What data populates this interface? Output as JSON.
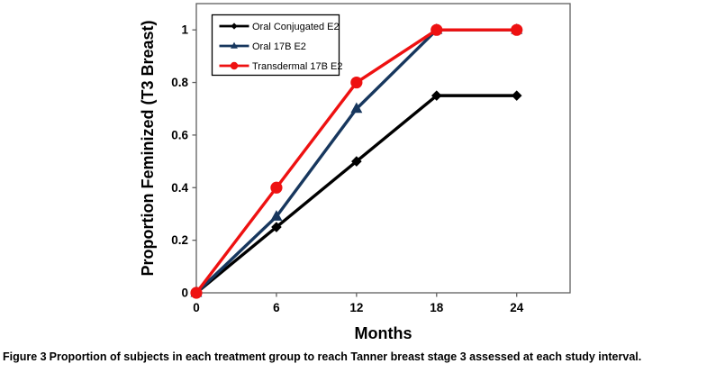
{
  "figure": {
    "caption_label": "Figure 3",
    "caption_text": "Proportion of subjects in each treatment group to reach Tanner breast stage 3 assessed at each study interval."
  },
  "chart_data": {
    "type": "line",
    "x": [
      0,
      6,
      12,
      18,
      24
    ],
    "series": [
      {
        "name": "Oral Conjugated E2",
        "color": "#000000",
        "marker": "diamond",
        "values": [
          0,
          0.25,
          0.5,
          0.75,
          0.75
        ]
      },
      {
        "name": "Oral 17B E2",
        "color": "#17375E",
        "marker": "triangle",
        "values": [
          0,
          0.29,
          0.7,
          1,
          1
        ]
      },
      {
        "name": "Transdermal 17B E2",
        "color": "#EE1111",
        "marker": "circle",
        "values": [
          0,
          0.4,
          0.8,
          1,
          1
        ]
      }
    ],
    "xlabel": "Months",
    "ylabel": "Proportion Feminized (T3 Breast)",
    "xticks": [
      0,
      6,
      12,
      18,
      24
    ],
    "xtick_labels": [
      "0",
      "6",
      "12",
      "18",
      "24"
    ],
    "yticks": [
      0,
      0.2,
      0.4,
      0.6,
      0.8,
      1
    ],
    "ytick_labels": [
      "0",
      "0.2",
      "0.4",
      "0.6",
      "0.8",
      "1"
    ],
    "xlim": [
      0,
      28
    ],
    "ylim": [
      0,
      1.1
    ],
    "grid": false,
    "legend_position": "top-left",
    "axis_color": "#5f5f5f",
    "plot_background": "#ffffff"
  }
}
